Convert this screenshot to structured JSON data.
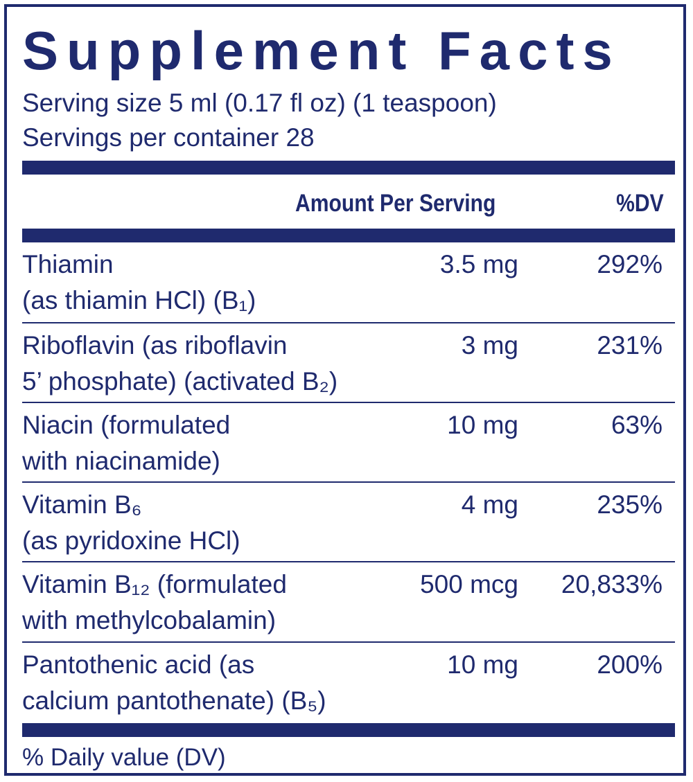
{
  "title": "Supplement Facts",
  "serving_size": "Serving size 5 ml (0.17 fl oz) (1 teaspoon)",
  "servings_per_container": "Servings per container 28",
  "header": {
    "amount": "Amount Per Serving",
    "dv": "%DV"
  },
  "rows": [
    {
      "line1": "Thiamin",
      "line2": "(as thiamin HCl) (B₁)",
      "amount": "3.5 mg",
      "dv": "292%"
    },
    {
      "line1": "Riboflavin (as riboflavin",
      "line2": "5’ phosphate) (activated B₂)",
      "amount": "3 mg",
      "dv": "231%"
    },
    {
      "line1": "Niacin (formulated",
      "line2": "with niacinamide)",
      "amount": "10 mg",
      "dv": "63%"
    },
    {
      "line1": "Vitamin B₆",
      "line2": "(as pyridoxine HCl)",
      "amount": "4 mg",
      "dv": "235%"
    },
    {
      "line1": "Vitamin B₁₂ (formulated",
      "line2": "with methylcobalamin)",
      "amount": "500 mcg",
      "dv": "20,833%"
    },
    {
      "line1": "Pantothenic acid (as",
      "line2": "calcium pantothenate) (B₅)",
      "amount": "10 mg",
      "dv": "200%"
    }
  ],
  "footnote": "% Daily value (DV)",
  "colors": {
    "ink": "#1f2a6e",
    "background": "#ffffff"
  }
}
